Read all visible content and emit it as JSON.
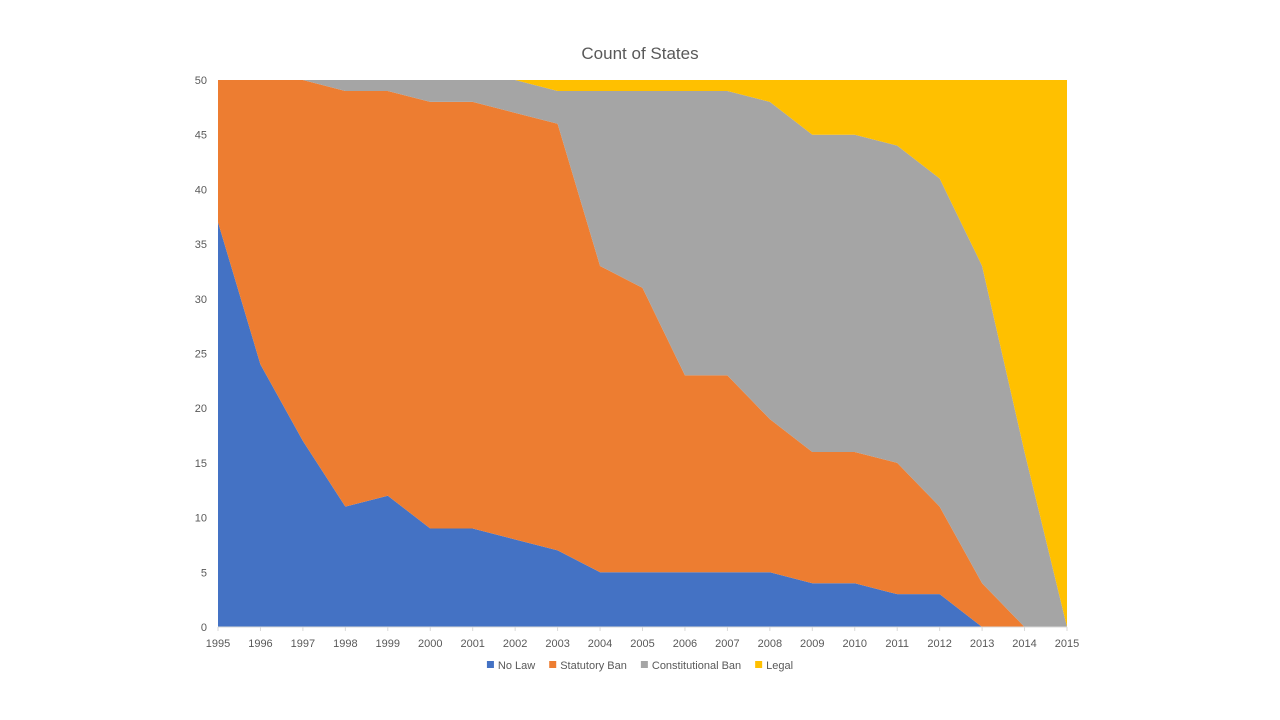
{
  "chart_data": {
    "type": "area",
    "stacked": true,
    "title": "Count of States",
    "xlabel": "",
    "ylabel": "",
    "x": [
      1995,
      1996,
      1997,
      1998,
      1999,
      2000,
      2001,
      2002,
      2003,
      2004,
      2005,
      2006,
      2007,
      2008,
      2009,
      2010,
      2011,
      2012,
      2013,
      2014,
      2015
    ],
    "ylim": [
      0,
      50
    ],
    "yticks": [
      0,
      5,
      10,
      15,
      20,
      25,
      30,
      35,
      40,
      45,
      50
    ],
    "grid": false,
    "legend_position": "bottom",
    "series": [
      {
        "name": "No Law",
        "color": "#4472C4",
        "values": [
          37,
          24,
          17,
          11,
          12,
          9,
          9,
          8,
          7,
          5,
          5,
          5,
          5,
          5,
          4,
          4,
          3,
          3,
          0,
          0,
          0
        ]
      },
      {
        "name": "Statutory Ban",
        "color": "#ED7D31",
        "values": [
          13,
          26,
          33,
          38,
          37,
          39,
          39,
          39,
          39,
          28,
          26,
          18,
          18,
          14,
          12,
          12,
          12,
          8,
          4,
          0,
          0
        ]
      },
      {
        "name": "Constitutional Ban",
        "color": "#A5A5A5",
        "values": [
          0,
          0,
          0,
          1,
          1,
          2,
          2,
          3,
          3,
          16,
          18,
          26,
          26,
          29,
          29,
          29,
          29,
          30,
          29,
          16,
          0
        ]
      },
      {
        "name": "Legal",
        "color": "#FFC000",
        "values": [
          0,
          0,
          0,
          0,
          0,
          0,
          0,
          0,
          1,
          1,
          1,
          1,
          1,
          2,
          5,
          5,
          6,
          9,
          17,
          34,
          50
        ]
      }
    ]
  }
}
